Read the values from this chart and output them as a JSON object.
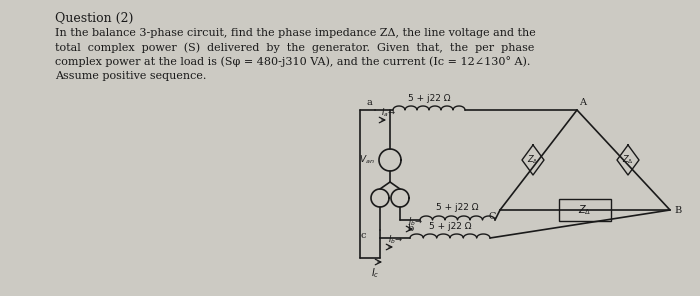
{
  "title": "Question (2)",
  "line1": "In the balance 3-phase circuit, find the phase impedance ZΔ, the line voltage and the",
  "line2": "total  complex  power  (S)  delivered  by  the  generator.  Given  that,  the  per  phase",
  "line3": "complex power at the load is (Sφ = 480-j310 VA), and the current (Ic = 12∠130° A).",
  "line4": "Assume positive sequence.",
  "bg_color": "#cccac3",
  "text_color": "#1a1a1a",
  "circuit_color": "#1a1a1a",
  "impedance_label": "5 + j22 Ω",
  "Za_label": "ZΔ"
}
